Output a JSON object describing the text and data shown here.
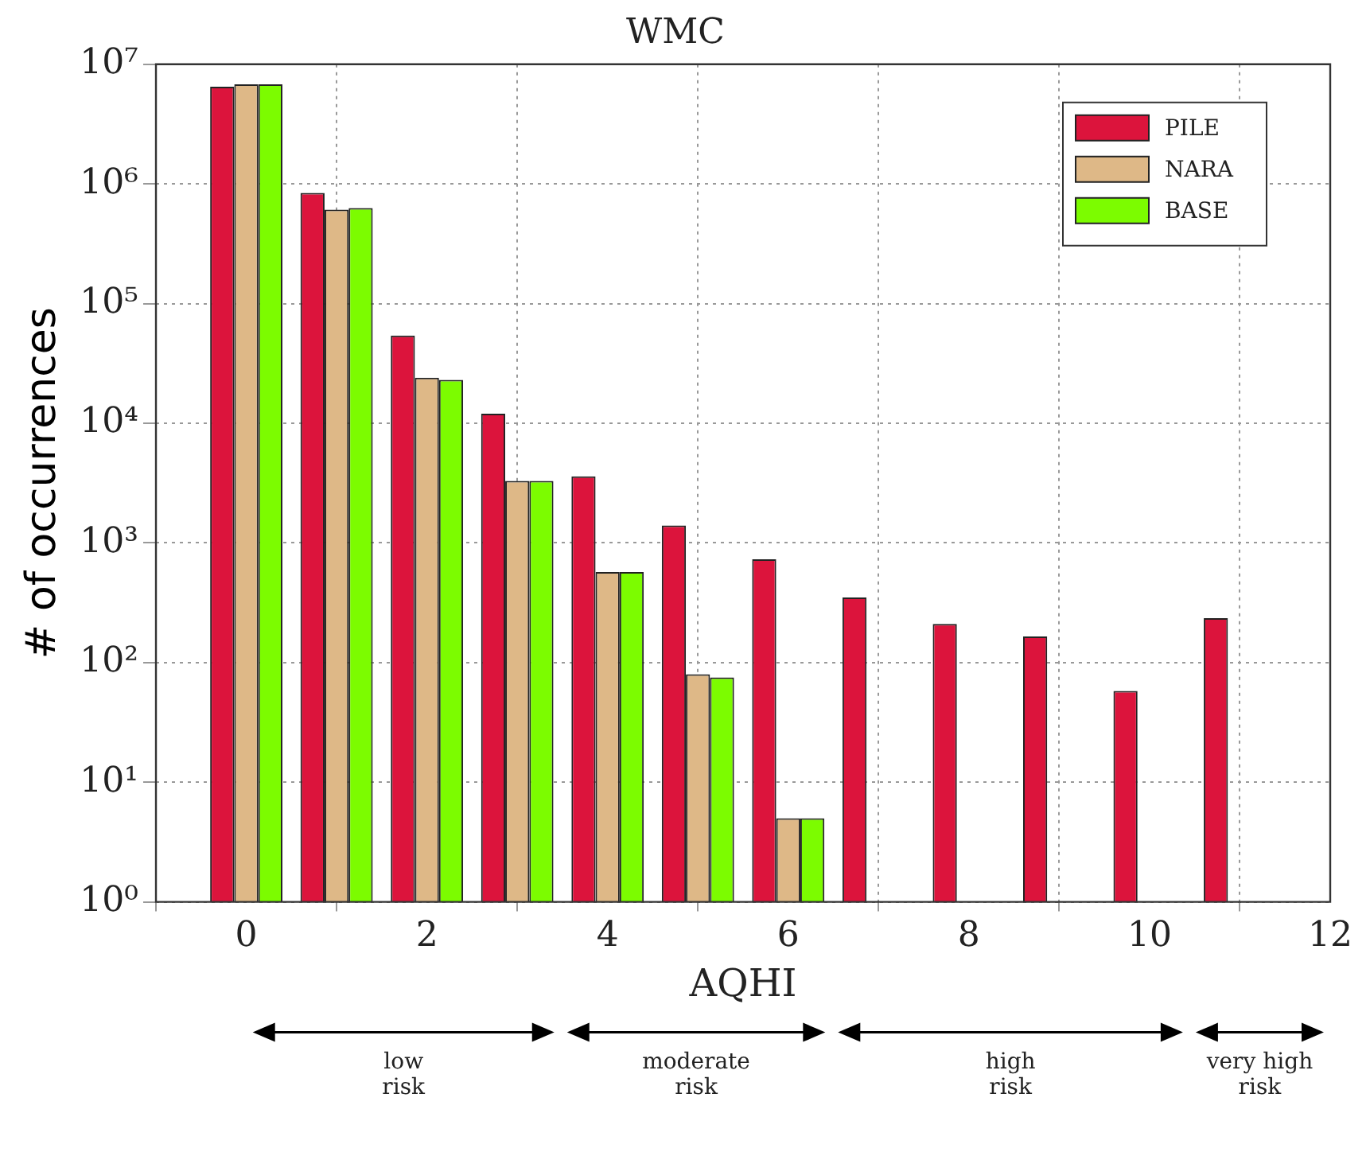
{
  "chart_data": {
    "type": "bar",
    "title": "WMC",
    "xlabel": "AQHI",
    "ylabel": "# of occurrences",
    "x": [
      0,
      1,
      2,
      3,
      4,
      5,
      6,
      7,
      8,
      9,
      10,
      11
    ],
    "series": [
      {
        "name": "PILE",
        "color": "#dc143c",
        "values": [
          6500000,
          840000,
          54000,
          12000,
          3600,
          1400,
          730,
          350,
          210,
          165,
          58,
          235
        ]
      },
      {
        "name": "NARA",
        "color": "#deb887",
        "values": [
          6800000,
          610000,
          24000,
          3300,
          570,
          80,
          5,
          null,
          null,
          null,
          null,
          null
        ]
      },
      {
        "name": "BASE",
        "color": "#7cfc00",
        "values": [
          6800000,
          630000,
          23000,
          3300,
          570,
          75,
          5,
          null,
          null,
          null,
          null,
          null
        ]
      }
    ],
    "log": "y",
    "xlim": [
      -1,
      12
    ],
    "xticks": [
      0,
      2,
      4,
      6,
      8,
      10,
      12
    ],
    "ylim": [
      1,
      10000000
    ],
    "yticks": [
      {
        "value": 1,
        "label": "10⁰"
      },
      {
        "value": 10,
        "label": "10¹"
      },
      {
        "value": 100,
        "label": "10²"
      },
      {
        "value": 1000,
        "label": "10³"
      },
      {
        "value": 10000,
        "label": "10⁴"
      },
      {
        "value": 100000,
        "label": "10⁵"
      },
      {
        "value": 1000000,
        "label": "10⁶"
      },
      {
        "value": 10000000,
        "label": "10⁷"
      }
    ],
    "annotations": [
      "low risk",
      "moderate risk",
      "high risk",
      "very high risk"
    ],
    "grid": true,
    "legend": "top right"
  }
}
